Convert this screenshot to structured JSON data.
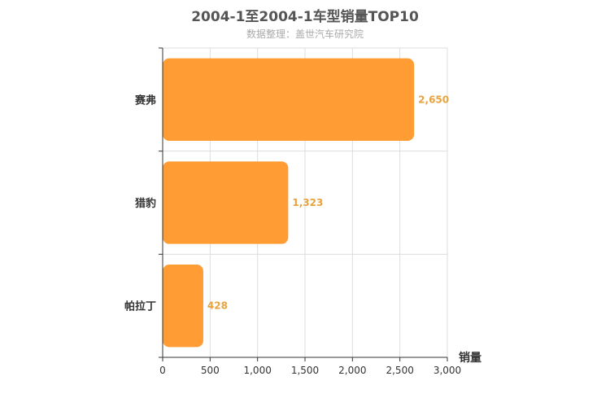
{
  "chart_data": {
    "type": "bar",
    "orientation": "horizontal",
    "title": "2004-1至2004-1车型销量TOP10",
    "subtitle": "数据整理：盖世汽车研究院",
    "xlabel": "销量",
    "ylabel": "",
    "xlim": [
      0,
      3000
    ],
    "xticks": [
      "0",
      "500",
      "1,000",
      "1,500",
      "2,000",
      "2,500",
      "3,000"
    ],
    "xtick_values": [
      0,
      500,
      1000,
      1500,
      2000,
      2500,
      3000
    ],
    "categories": [
      "赛弗",
      "猎豹",
      "帕拉丁"
    ],
    "values": [
      2650,
      1323,
      428
    ],
    "value_labels": [
      "2,650",
      "1,323",
      "428"
    ],
    "grid": true,
    "bar_color": "#ff9c33",
    "label_color": "#e8a33d",
    "axis_color": "#333333",
    "grid_color": "#dddddd"
  }
}
